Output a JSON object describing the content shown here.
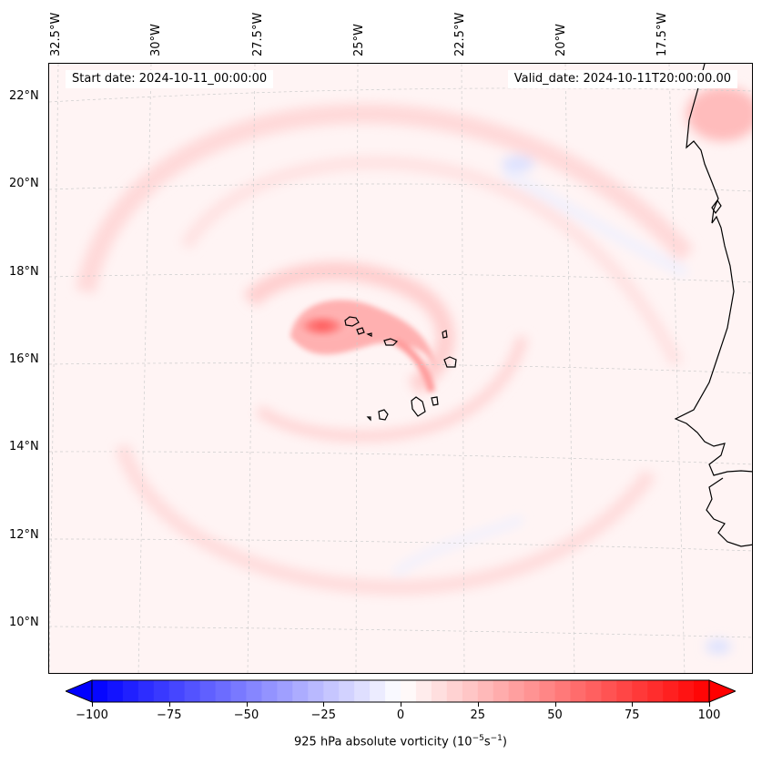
{
  "map": {
    "start_date": "Start date: 2024-10-11_00:00:00",
    "valid_date": "Valid_date: 2024-10-11T20:00:00.00",
    "longitude_labels": [
      "32.5°W",
      "30°W",
      "27.5°W",
      "25°W",
      "22.5°W",
      "20°W",
      "17.5°W"
    ],
    "latitude_labels": [
      "22°N",
      "20°N",
      "18°N",
      "16°N",
      "14°N",
      "12°N",
      "10°N"
    ],
    "field_name": "925 hPa absolute vorticity",
    "units_base": "(10",
    "units_exp1": "−5",
    "units_mid": "s",
    "units_exp2": "−1",
    "units_close": ")"
  },
  "colorbar": {
    "min": -100,
    "max": 100,
    "tick_labels": [
      "−100",
      "−75",
      "−50",
      "−25",
      "0",
      "25",
      "50",
      "75",
      "100"
    ],
    "low_color": "#0000ff",
    "mid_color": "#ffffff",
    "high_color": "#ff0000",
    "extend": "both"
  },
  "colors": {
    "background_field": "#fff4f4",
    "coastline": "#000000",
    "gridline": "#cccccc"
  }
}
